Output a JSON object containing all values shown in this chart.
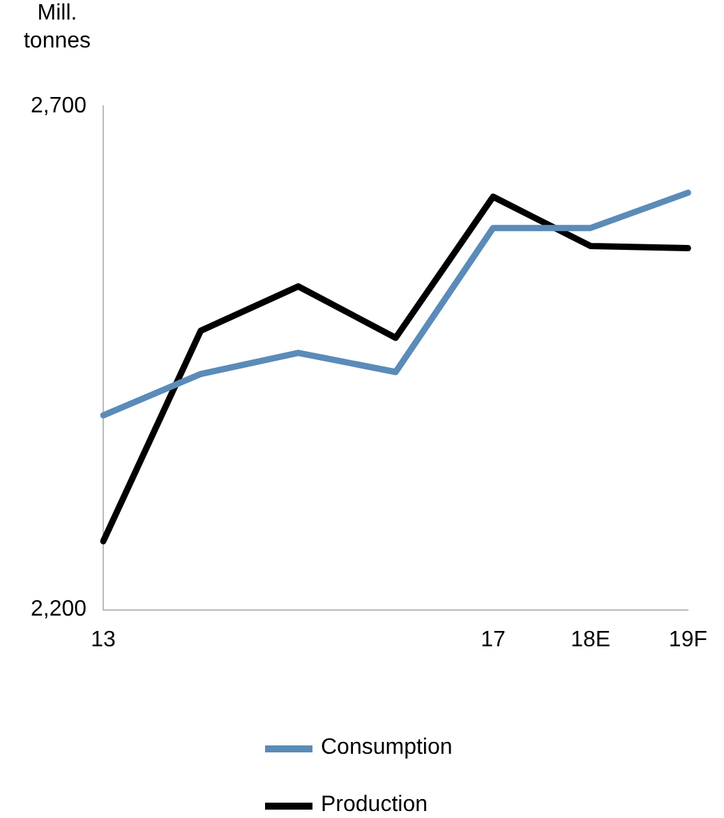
{
  "chart_data": {
    "type": "line",
    "ylabel": "Mill. tonnes",
    "categories": [
      "13",
      null,
      null,
      null,
      "17",
      "18E",
      "19F"
    ],
    "series": [
      {
        "name": "Consumption",
        "color": "#5b8bb8",
        "values": [
          2393,
          2434,
          2455,
          2436,
          2579,
          2579,
          2614
        ]
      },
      {
        "name": "Production",
        "color": "#000000",
        "values": [
          2268,
          2477,
          2521,
          2470,
          2610,
          2561,
          2559
        ]
      }
    ],
    "ylim": [
      2200,
      2700
    ],
    "yticks": [
      {
        "value": 2200,
        "label": "2,200"
      },
      {
        "value": 2700,
        "label": "2,700"
      }
    ],
    "grid": false,
    "legend": "bottom",
    "marker": "none",
    "line_style": "solid"
  }
}
